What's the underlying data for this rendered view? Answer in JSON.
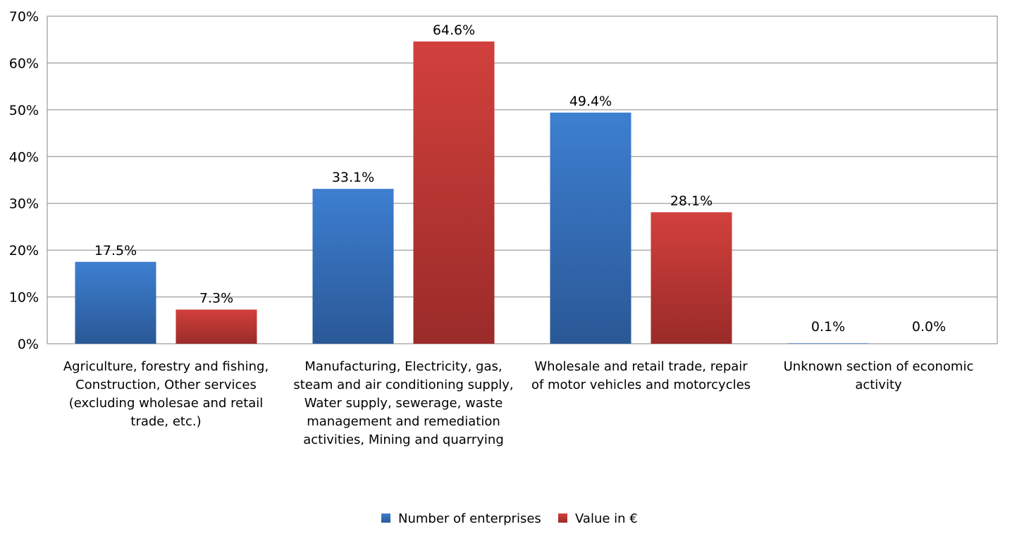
{
  "chart_data": {
    "type": "bar",
    "categories": [
      [
        "Agriculture, forestry and fishing,",
        "Construction, Other services",
        "(excluding wholesae and retail",
        "trade, etc.)"
      ],
      [
        "Manufacturing, Electricity, gas,",
        "steam and air conditioning supply,",
        "Water supply, sewerage, waste",
        "management and remediation",
        "activities, Mining and quarrying"
      ],
      [
        "Wholesale and retail trade, repair",
        "of motor vehicles and motorcycles"
      ],
      [
        "Unknown section of economic",
        "activity"
      ]
    ],
    "series": [
      {
        "name": "Number of enterprises",
        "values": [
          17.5,
          33.1,
          49.4,
          0.1
        ],
        "labels": [
          "17.5%",
          "33.1%",
          "49.4%",
          "0.1%"
        ],
        "color": "#3a73c3"
      },
      {
        "name": "Value in €",
        "values": [
          7.3,
          64.6,
          28.1,
          0.0
        ],
        "labels": [
          "7.3%",
          "64.6%",
          "28.1%",
          "0.0%"
        ],
        "color": "#c93a37"
      }
    ],
    "ylim": [
      0,
      70
    ],
    "yticks": [
      "0%",
      "10%",
      "20%",
      "30%",
      "40%",
      "50%",
      "60%",
      "70%"
    ],
    "grid": true,
    "legend_position": "bottom"
  }
}
